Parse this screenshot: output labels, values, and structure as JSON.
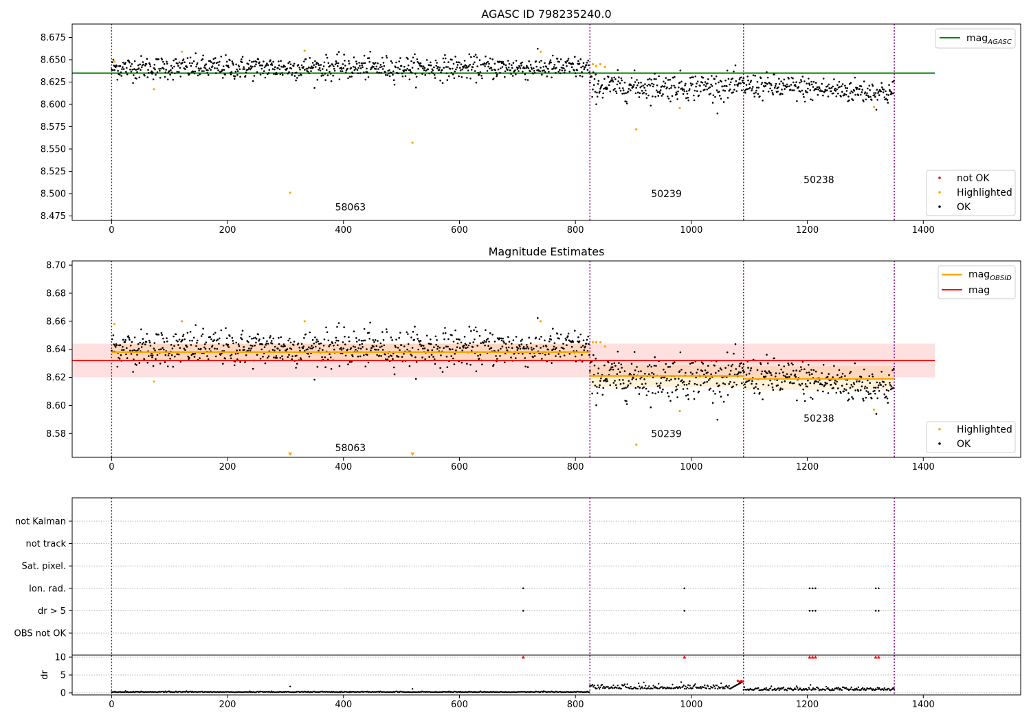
{
  "chart_data": [
    {
      "type": "scatter",
      "title": "AGASC ID 798235240.0",
      "xlim": [
        -68,
        1568
      ],
      "ylim": [
        8.47,
        8.69
      ],
      "xticks": [
        "0",
        "200",
        "400",
        "600",
        "800",
        "1000",
        "1200",
        "1400"
      ],
      "yticks": [
        "8.475",
        "8.500",
        "8.525",
        "8.550",
        "8.575",
        "8.600",
        "8.625",
        "8.650",
        "8.675"
      ],
      "obsid_boundaries": [
        0,
        825,
        1090,
        1350
      ],
      "obsid_labels": [
        {
          "text": "58063",
          "x": 412,
          "y": 8.481
        },
        {
          "text": "50239",
          "x": 957,
          "y": 8.496
        },
        {
          "text": "50238",
          "x": 1220,
          "y": 8.512
        }
      ],
      "segments": [
        {
          "x0": 0,
          "x1": 825,
          "mean": 8.641,
          "sd": 0.0065,
          "trend": 0.0
        },
        {
          "x0": 825,
          "x1": 1090,
          "mean": 8.62,
          "sd": 0.0075,
          "trend": 0.0
        },
        {
          "x0": 1090,
          "x1": 1350,
          "mean": 8.621,
          "sd": 0.007,
          "trend": -0.008
        }
      ],
      "mag_agasc": 8.635,
      "mag_agasc_x": [
        -68,
        1420
      ],
      "highlighted_points": [
        [
          5,
          8.648
        ],
        [
          73,
          8.617
        ],
        [
          121,
          8.659
        ],
        [
          308,
          8.501
        ],
        [
          333,
          8.66
        ],
        [
          519,
          8.557
        ],
        [
          740,
          8.659
        ],
        [
          830,
          8.645
        ],
        [
          836,
          8.643
        ],
        [
          843,
          8.645
        ],
        [
          851,
          8.642
        ],
        [
          905,
          8.572
        ],
        [
          980,
          8.596
        ],
        [
          1315,
          8.597
        ]
      ],
      "series": [
        {
          "name": "mag_AGASC",
          "label_main": "mag",
          "label_sub": "AGASC",
          "color": "#008000"
        },
        {
          "name": "not OK",
          "label": "not OK",
          "color": "#ff0000"
        },
        {
          "name": "Highlighted",
          "label": "Highlighted",
          "color": "#ffa500"
        },
        {
          "name": "OK",
          "label": "OK",
          "color": "#000000"
        }
      ],
      "legend_upper_placement": "upper right",
      "legend_lower_placement": "lower right"
    },
    {
      "type": "scatter",
      "title": "Magnitude Estimates",
      "xlim": [
        -68,
        1568
      ],
      "ylim": [
        8.563,
        8.703
      ],
      "xticks": [
        "0",
        "200",
        "400",
        "600",
        "800",
        "1000",
        "1200",
        "1400"
      ],
      "yticks": [
        "8.58",
        "8.60",
        "8.62",
        "8.64",
        "8.66",
        "8.68",
        "8.70"
      ],
      "obsid_labels": [
        {
          "text": "58063",
          "x": 412,
          "y": 8.5675
        },
        {
          "text": "50239",
          "x": 957,
          "y": 8.5775
        },
        {
          "text": "50238",
          "x": 1220,
          "y": 8.5885
        }
      ],
      "mag": 8.632,
      "mag_band": [
        8.62,
        8.644
      ],
      "mag_x": [
        -68,
        1420
      ],
      "mag_obsid": [
        {
          "x0": 0,
          "x1": 825,
          "value": 8.638,
          "band": [
            8.632,
            8.644
          ]
        },
        {
          "x0": 825,
          "x1": 1090,
          "value": 8.621,
          "band": [
            8.613,
            8.629
          ]
        },
        {
          "x0": 1090,
          "x1": 1350,
          "value": 8.619,
          "band": [
            8.611,
            8.628
          ]
        }
      ],
      "out_of_range_markers": [
        308,
        519
      ],
      "highlighted_points": [
        [
          5,
          8.658
        ],
        [
          73,
          8.617
        ],
        [
          121,
          8.66
        ],
        [
          333,
          8.66
        ],
        [
          740,
          8.66
        ],
        [
          830,
          8.645
        ],
        [
          836,
          8.645
        ],
        [
          843,
          8.645
        ],
        [
          851,
          8.642
        ],
        [
          905,
          8.572
        ],
        [
          980,
          8.596
        ],
        [
          1315,
          8.597
        ]
      ],
      "series": [
        {
          "name": "mag_OBSID",
          "label_main": "mag",
          "label_sub": "OBSID",
          "color": "#ffa500"
        },
        {
          "name": "mag",
          "label": "mag",
          "color": "#ff0000"
        },
        {
          "name": "Highlighted",
          "label": "Highlighted",
          "color": "#ffa500"
        },
        {
          "name": "OK",
          "label": "OK",
          "color": "#000000"
        }
      ]
    },
    {
      "type": "scatter",
      "flag_rows": [
        "not Kalman",
        "not track",
        "Sat. pixel.",
        "Ion. rad.",
        "dr > 5",
        "OBS not OK"
      ],
      "flag_points": {
        "Ion. rad.": [
          710,
          988,
          1204,
          1209,
          1214,
          1318,
          1323
        ],
        "dr > 5": [
          710,
          988,
          1204,
          1209,
          1214,
          1318,
          1323
        ]
      },
      "dr_ylabel": "dr",
      "dr_yticks": [
        "0",
        "5",
        "10"
      ],
      "dr_ylim": [
        -0.3,
        10.3
      ],
      "dr_clipped_at_10": [
        710,
        988,
        1204,
        1209,
        1214,
        1318,
        1323
      ],
      "dr_segments": [
        {
          "x0": 0,
          "x1": 825,
          "level": 0.15
        },
        {
          "x0": 825,
          "x1": 1090,
          "level": 1.1
        },
        {
          "x0": 1090,
          "x1": 1350,
          "level": 0.7
        }
      ],
      "dr_spikes": [
        [
          308,
          1.8
        ],
        [
          519,
          1.1
        ]
      ],
      "dr_red_points": [
        [
          1080,
          3.4
        ],
        [
          1083,
          3.1
        ],
        [
          1086,
          3.3
        ],
        [
          1089,
          3.2
        ]
      ],
      "xticks": [
        "0",
        "200",
        "400",
        "600",
        "800",
        "1000",
        "1200",
        "1400"
      ]
    }
  ]
}
